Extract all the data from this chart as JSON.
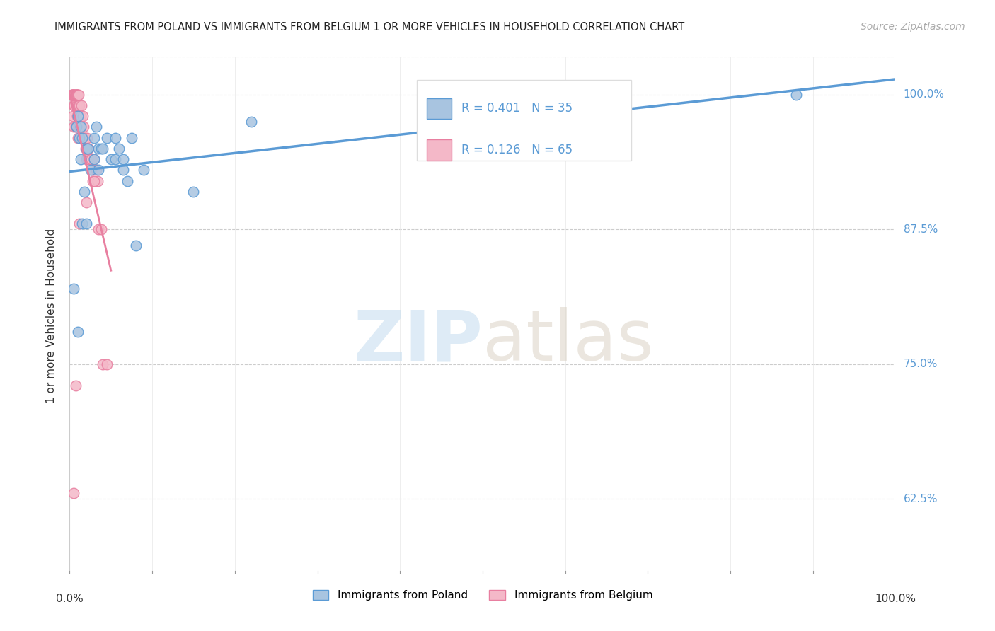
{
  "title": "IMMIGRANTS FROM POLAND VS IMMIGRANTS FROM BELGIUM 1 OR MORE VEHICLES IN HOUSEHOLD CORRELATION CHART",
  "source": "Source: ZipAtlas.com",
  "ylabel": "1 or more Vehicles in Household",
  "ytick_labels": [
    "100.0%",
    "87.5%",
    "75.0%",
    "62.5%"
  ],
  "ytick_values": [
    1.0,
    0.875,
    0.75,
    0.625
  ],
  "xlim": [
    0.0,
    1.0
  ],
  "ylim": [
    0.555,
    1.035
  ],
  "poland_R": 0.401,
  "poland_N": 35,
  "belgium_R": 0.126,
  "belgium_N": 65,
  "poland_color": "#a8c4e0",
  "poland_color_dark": "#5b9bd5",
  "belgium_color": "#f4b8c8",
  "belgium_color_dark": "#e87fa0",
  "legend_poland_label": "Immigrants from Poland",
  "legend_belgium_label": "Immigrants from Belgium",
  "watermark_zip_color": "#c8dff0",
  "watermark_atlas_color": "#d8cfc0",
  "poland_x": [
    0.005,
    0.008,
    0.01,
    0.01,
    0.012,
    0.013,
    0.013,
    0.015,
    0.015,
    0.018,
    0.02,
    0.02,
    0.022,
    0.025,
    0.03,
    0.03,
    0.032,
    0.035,
    0.035,
    0.038,
    0.04,
    0.045,
    0.05,
    0.055,
    0.055,
    0.06,
    0.065,
    0.065,
    0.07,
    0.075,
    0.08,
    0.09,
    0.15,
    0.22,
    0.88
  ],
  "poland_y": [
    0.82,
    0.97,
    0.98,
    0.78,
    0.96,
    0.97,
    0.94,
    0.88,
    0.96,
    0.91,
    0.95,
    0.88,
    0.95,
    0.93,
    0.94,
    0.96,
    0.97,
    0.93,
    0.95,
    0.95,
    0.95,
    0.96,
    0.94,
    0.96,
    0.94,
    0.95,
    0.94,
    0.93,
    0.92,
    0.96,
    0.86,
    0.93,
    0.91,
    0.975,
    1.0
  ],
  "belgium_x": [
    0.002,
    0.003,
    0.003,
    0.004,
    0.004,
    0.004,
    0.005,
    0.005,
    0.005,
    0.005,
    0.006,
    0.006,
    0.006,
    0.007,
    0.007,
    0.007,
    0.008,
    0.008,
    0.008,
    0.008,
    0.009,
    0.009,
    0.009,
    0.01,
    0.01,
    0.01,
    0.01,
    0.011,
    0.011,
    0.011,
    0.012,
    0.012,
    0.013,
    0.013,
    0.014,
    0.014,
    0.015,
    0.016,
    0.016,
    0.017,
    0.018,
    0.019,
    0.019,
    0.02,
    0.02,
    0.021,
    0.022,
    0.022,
    0.023,
    0.025,
    0.026,
    0.027,
    0.028,
    0.03,
    0.032,
    0.034,
    0.035,
    0.038,
    0.04,
    0.045,
    0.005,
    0.007,
    0.012,
    0.02,
    0.03
  ],
  "belgium_y": [
    1.0,
    1.0,
    1.0,
    1.0,
    1.0,
    0.98,
    1.0,
    1.0,
    0.99,
    0.97,
    1.0,
    1.0,
    0.99,
    1.0,
    1.0,
    0.97,
    1.0,
    1.0,
    0.99,
    0.97,
    1.0,
    1.0,
    0.98,
    1.0,
    0.99,
    0.98,
    0.96,
    1.0,
    0.99,
    0.97,
    0.99,
    0.97,
    0.98,
    0.96,
    0.99,
    0.97,
    0.96,
    0.98,
    0.96,
    0.97,
    0.96,
    0.96,
    0.95,
    0.95,
    0.94,
    0.96,
    0.95,
    0.94,
    0.95,
    0.94,
    0.94,
    0.93,
    0.92,
    0.94,
    0.93,
    0.92,
    0.875,
    0.875,
    0.75,
    0.75,
    0.63,
    0.73,
    0.88,
    0.9,
    0.92
  ]
}
